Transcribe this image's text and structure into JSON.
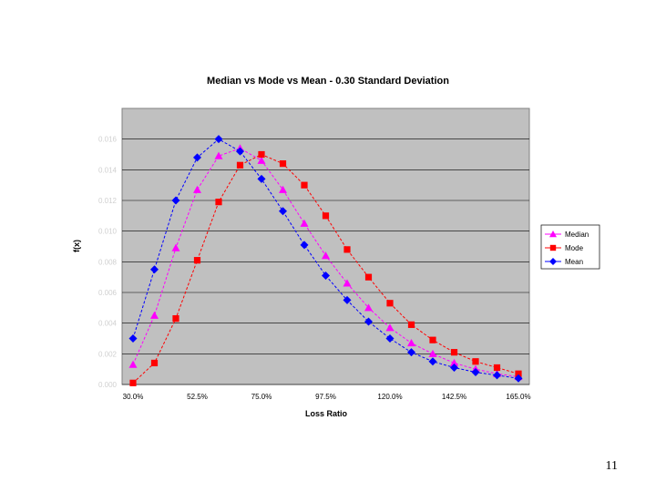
{
  "page_number": "11",
  "chart_data": {
    "type": "line",
    "title": "Median vs Mode vs Mean - 0.30 Standard Deviation",
    "xlabel": "Loss Ratio",
    "ylabel": "f(x)",
    "x_tick_labels": [
      "30.0%",
      "52.5%",
      "75.0%",
      "97.5%",
      "120.0%",
      "142.5%",
      "165.0%"
    ],
    "y_tick_labels": [
      "0.000",
      "0.002",
      "0.004",
      "0.006",
      "0.008",
      "0.010",
      "0.012",
      "0.014",
      "0.016"
    ],
    "xlim": [
      30,
      165
    ],
    "ylim": [
      0,
      0.018
    ],
    "x": [
      30.0,
      37.5,
      45.0,
      52.5,
      60.0,
      67.5,
      75.0,
      82.5,
      90.0,
      97.5,
      105.0,
      112.5,
      120.0,
      127.5,
      135.0,
      142.5,
      150.0,
      157.5,
      165.0
    ],
    "series": [
      {
        "name": "Median",
        "marker": "triangle",
        "color": "#ff00ff",
        "values": [
          0.0013,
          0.0045,
          0.0089,
          0.0127,
          0.0149,
          0.0154,
          0.0146,
          0.0127,
          0.0105,
          0.0084,
          0.0066,
          0.005,
          0.0037,
          0.0027,
          0.002,
          0.0014,
          0.001,
          0.0007,
          0.0005
        ]
      },
      {
        "name": "Mode",
        "marker": "square",
        "color": "#ff0000",
        "values": [
          0.0001,
          0.0014,
          0.0043,
          0.0081,
          0.0119,
          0.0143,
          0.015,
          0.0144,
          0.013,
          0.011,
          0.0088,
          0.007,
          0.0053,
          0.0039,
          0.0029,
          0.0021,
          0.0015,
          0.0011,
          0.0007
        ]
      },
      {
        "name": "Mean",
        "marker": "diamond",
        "color": "#0000ff",
        "values": [
          0.003,
          0.0075,
          0.012,
          0.0148,
          0.016,
          0.0152,
          0.0134,
          0.0113,
          0.0091,
          0.0071,
          0.0055,
          0.0041,
          0.003,
          0.0021,
          0.0015,
          0.0011,
          0.0008,
          0.0006,
          0.0004
        ]
      }
    ],
    "grid": true,
    "legend": "right",
    "plot_background": "#c0c0c0"
  }
}
